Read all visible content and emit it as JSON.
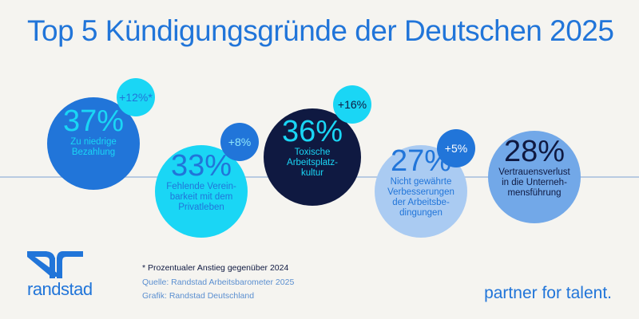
{
  "title": "Top 5 Kündigungsgründe der Deutschen 2025",
  "chart_data": {
    "type": "bubble",
    "title": "Top 5 Kündigungsgründe der Deutschen 2025",
    "unit": "%",
    "items": [
      {
        "value": 37,
        "value_label": "37%",
        "label": [
          "Zu niedrige",
          "Bezahlung"
        ],
        "change_label": "+12%*",
        "color": "#2175d9",
        "text_color": "#1ad6f5",
        "badge_color": "#1ad6f5",
        "badge_text_color": "#2175d9"
      },
      {
        "value": 33,
        "value_label": "33%",
        "label": [
          "Fehlende Verein-",
          "barkeit mit dem",
          "Privatleben"
        ],
        "change_label": "+8%",
        "color": "#1ad6f5",
        "text_color": "#2175d9",
        "badge_color": "#2175d9",
        "badge_text_color": "#8fe6fa"
      },
      {
        "value": 36,
        "value_label": "36%",
        "label": [
          "Toxische",
          "Arbeitsplatz-",
          "kultur"
        ],
        "change_label": "+16%",
        "color": "#0f1941",
        "text_color": "#1ad6f5",
        "badge_color": "#1ad6f5",
        "badge_text_color": "#0f1941"
      },
      {
        "value": 27,
        "value_label": "27%",
        "label": [
          "Nicht gewährte",
          "Verbesserungen",
          "der Arbeitsbe-",
          "dingungen"
        ],
        "change_label": "+5%",
        "color": "#aacbf2",
        "text_color": "#2175d9",
        "badge_color": "#2175d9",
        "badge_text_color": "#ffffff"
      },
      {
        "value": 28,
        "value_label": "28%",
        "label": [
          "Vertrauensverlust",
          "in die Unterneh-",
          "mensführung"
        ],
        "change_label": null,
        "color": "#72a8e8",
        "text_color": "#0f1941"
      }
    ]
  },
  "footnotes": {
    "asterisk": "* Prozentualer Anstieg gegenüber 2024",
    "source": "Quelle: Randstad Arbeitsbarometer 2025",
    "graphic": "Grafik: Randstad Deutschland"
  },
  "logo": "randstad",
  "tagline": "partner for talent."
}
